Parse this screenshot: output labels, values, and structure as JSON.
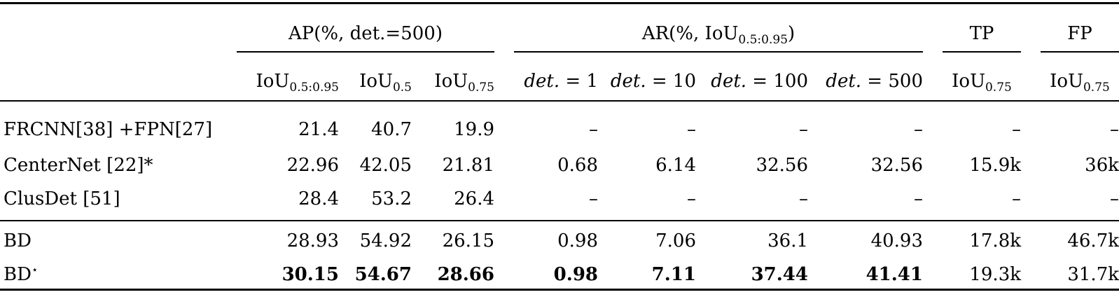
{
  "table": {
    "header": {
      "groups": {
        "ap": "AP(%, det.=500)",
        "ar_prefix": "AR(%, IoU",
        "ar_sub": "0.5:0.95",
        "ar_suffix": ")",
        "tp": "TP",
        "fp": "FP"
      },
      "subheaders": {
        "iou": "IoU",
        "sub_5095": "0.5:0.95",
        "sub_05": "0.5",
        "sub_075": "0.75",
        "det_word": "det.",
        "det_1": " = 1",
        "det_10": " = 10",
        "det_100": " = 100",
        "det_500": " = 500"
      }
    },
    "rows": [
      {
        "method": "FRCNN[38] +FPN[27]",
        "values": [
          "21.4",
          "40.7",
          "19.9",
          "–",
          "–",
          "–",
          "–",
          "–",
          "–"
        ]
      },
      {
        "method": "CenterNet [22]*",
        "values": [
          "22.96",
          "42.05",
          "21.81",
          "0.68",
          "6.14",
          "32.56",
          "32.56",
          "15.9k",
          "36k"
        ]
      },
      {
        "method": "ClusDet [51]",
        "values": [
          "28.4",
          "53.2",
          "26.4",
          "–",
          "–",
          "–",
          "–",
          "–",
          "–"
        ]
      },
      {
        "method": "BD",
        "values": [
          "28.93",
          "54.92",
          "26.15",
          "0.98",
          "7.06",
          "36.1",
          "40.93",
          "17.8k",
          "46.7k"
        ]
      },
      {
        "method": "BD",
        "method_sup": "⋆",
        "values": [
          "30.15",
          "54.67",
          "28.66",
          "0.98",
          "7.11",
          "37.44",
          "41.41",
          "19.3k",
          "31.7k"
        ]
      }
    ]
  }
}
